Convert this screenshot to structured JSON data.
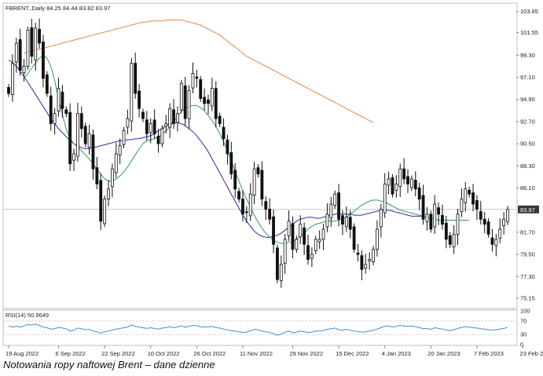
{
  "caption": "Notowania ropy naftowej Brent – dane dzienne",
  "chart_data": [
    {
      "type": "candlestick",
      "header": {
        "symbol": "FBRENT.,Daily",
        "ohlc": "84.25 84.44 83.82 83.97"
      },
      "ylim": [
        74.2,
        104.4
      ],
      "y_ticks": [
        "103.65",
        "101.55",
        "99.30",
        "97.10",
        "94.90",
        "92.70",
        "90.50",
        "88.30",
        "86.10",
        "83.97",
        "81.70",
        "79.50",
        "77.30",
        "75.15"
      ],
      "last_price": 83.97,
      "x_tick_labels": [
        "19 Aug 2022",
        "6 Sep 2022",
        "22 Sep 2022",
        "10 Oct 2022",
        "26 Oct 2022",
        "11 Nov 2022",
        "29 Nov 2022",
        "15 Dec 2022",
        "4 Jan 2023",
        "20 Jan 2023",
        "7 Feb 2023",
        "23 Feb 2023"
      ],
      "x_tick_index": [
        0,
        13,
        25,
        37,
        49,
        61,
        74,
        86,
        98,
        110,
        122,
        134
      ],
      "closes": [
        95.5,
        98.5,
        100.5,
        97.8,
        98.2,
        101.8,
        99.2,
        102.0,
        100.5,
        97.0,
        95.5,
        92.5,
        93.5,
        96.0,
        94.0,
        93.5,
        88.5,
        89.5,
        93.5,
        92.0,
        90.5,
        91.5,
        88.0,
        86.5,
        82.8,
        85.0,
        86.0,
        88.0,
        89.5,
        90.3,
        91.8,
        93.0,
        98.5,
        95.5,
        94.0,
        93.0,
        91.5,
        92.5,
        91.5,
        90.5,
        92.0,
        92.5,
        94.0,
        92.5,
        93.5,
        96.5,
        93.0,
        95.8,
        97.5,
        97.0,
        95.0,
        94.5,
        94.5,
        96.0,
        93.0,
        92.5,
        91.0,
        89.5,
        87.5,
        86.0,
        85.0,
        83.5,
        83.7,
        85.5,
        88.0,
        87.5,
        85.0,
        84.0,
        83.0,
        80.5,
        77.0,
        78.5,
        81.0,
        82.8,
        80.0,
        81.0,
        82.5,
        80.5,
        79.0,
        79.5,
        81.0,
        81.0,
        82.0,
        83.5,
        84.5,
        85.5,
        83.0,
        82.5,
        83.2,
        82.0,
        80.0,
        79.5,
        78.0,
        78.5,
        79.0,
        80.0,
        82.0,
        84.0,
        86.5,
        87.0,
        85.5,
        86.5,
        88.0,
        87.0,
        86.5,
        87.0,
        86.0,
        85.0,
        83.0,
        83.5,
        82.0,
        84.5,
        83.5,
        82.5,
        81.0,
        80.5,
        81.5,
        83.5,
        85.0,
        86.0,
        85.5,
        84.5,
        84.0,
        83.0,
        82.5,
        81.5,
        80.5,
        81.0,
        82.0,
        83.0,
        83.97
      ],
      "sma_fast": [
        97.0,
        97.5,
        98.0,
        98.5,
        99.0,
        99.3,
        99.0,
        98.2,
        96.8,
        95.0,
        93.4,
        92.0,
        91.0,
        90.5,
        90.2,
        89.8,
        89.4,
        89.0,
        88.5,
        88.0,
        87.5,
        87.0,
        86.8,
        86.8,
        87.0,
        87.3,
        87.7,
        88.2,
        88.8,
        89.4,
        90.0,
        90.5,
        90.8,
        90.9,
        91.0,
        91.2,
        91.4,
        91.8,
        92.2,
        92.7,
        93.2,
        93.7,
        94.0,
        94.2,
        94.3,
        94.3,
        94.1,
        93.8,
        93.3,
        92.8,
        92.2,
        91.5,
        90.7,
        89.8,
        88.8,
        87.8,
        86.8,
        85.8,
        85.0,
        84.2,
        83.4,
        82.7,
        82.1,
        81.6,
        81.2,
        80.9,
        80.7,
        80.6,
        80.6,
        80.7,
        80.8,
        81.0,
        81.3,
        81.6,
        82.0,
        82.3,
        82.5,
        82.6,
        82.7,
        82.8,
        82.8,
        82.8,
        82.9,
        83.0,
        83.2,
        83.5,
        83.8,
        84.1,
        84.4,
        84.6,
        84.8,
        84.9,
        84.9,
        84.8,
        84.7,
        84.5,
        84.3,
        84.1,
        83.9,
        83.8,
        83.7,
        83.6,
        83.5,
        83.4,
        83.3,
        83.2,
        83.1,
        83.0,
        82.9,
        82.9,
        82.9,
        82.9,
        82.9,
        82.9,
        82.9,
        82.9,
        82.9
      ],
      "sma_mid": [
        98.8,
        98.6,
        98.2,
        97.7,
        97.2,
        96.6,
        96.0,
        95.4,
        94.8,
        94.2,
        93.6,
        93.0,
        92.5,
        92.0,
        91.6,
        91.2,
        90.8,
        90.5,
        90.3,
        90.1,
        90.0,
        90.0,
        90.1,
        90.2,
        90.3,
        90.4,
        90.5,
        90.6,
        90.7,
        90.8,
        90.8,
        90.9,
        90.9,
        91.0,
        91.0,
        91.1,
        91.2,
        91.3,
        91.5,
        91.8,
        92.0,
        92.3,
        92.5,
        92.6,
        92.6,
        92.5,
        92.3,
        92.0,
        91.7,
        91.3,
        90.8,
        90.3,
        89.7,
        89.0,
        88.3,
        87.6,
        86.9,
        86.2,
        85.5,
        84.8,
        84.1,
        83.4,
        82.8,
        82.3,
        81.8,
        81.5,
        81.3,
        81.2,
        81.2,
        81.3,
        81.4,
        81.6,
        81.9,
        82.2,
        82.5,
        82.8,
        83.0,
        83.1,
        83.2,
        83.2,
        83.1,
        83.1,
        83.2,
        83.3,
        83.4,
        83.5,
        83.5,
        83.5,
        83.5,
        83.5,
        83.4,
        83.4,
        83.4,
        83.5,
        83.6,
        83.7,
        83.8,
        83.9,
        83.9,
        83.9,
        83.8,
        83.7,
        83.6,
        83.5,
        83.4,
        83.3,
        83.3,
        83.3,
        83.3
      ],
      "sma_slow": [
        99.5,
        99.6,
        99.7,
        99.8,
        99.9,
        100.0,
        100.1,
        100.2,
        100.3,
        100.4,
        100.5,
        100.6,
        100.7,
        100.8,
        100.9,
        101.0,
        101.1,
        101.2,
        101.3,
        101.4,
        101.5,
        101.6,
        101.7,
        101.8,
        101.9,
        102.0,
        102.1,
        102.2,
        102.3,
        102.4,
        102.5,
        102.6,
        102.6,
        102.7,
        102.7,
        102.7,
        102.7,
        102.8,
        102.8,
        102.8,
        102.8,
        102.8,
        102.7,
        102.6,
        102.5,
        102.4,
        102.3,
        102.1,
        101.9,
        101.7,
        101.5,
        101.3,
        101.0,
        100.7,
        100.4,
        100.1,
        99.8,
        99.5,
        99.2,
        99.0,
        98.8,
        98.6,
        98.4,
        98.2,
        98.0,
        97.8,
        97.6,
        97.4,
        97.2,
        97.0,
        96.8,
        96.6,
        96.4,
        96.2,
        96.0,
        95.8,
        95.6,
        95.4,
        95.2,
        95.0,
        94.8,
        94.6,
        94.4,
        94.2,
        94.0,
        93.8,
        93.6,
        93.4,
        93.2,
        93.0,
        92.8,
        92.6
      ],
      "colors": {
        "sma_fast": "#2e9d5c",
        "sma_mid": "#2a2aa5",
        "sma_slow": "#e08a44",
        "rsi": "#3d8fd6"
      }
    },
    {
      "type": "line",
      "header": "RSI(14) 50.9649",
      "ylim": [
        0,
        100
      ],
      "y_ticks": [
        "100",
        "70",
        "30",
        "0"
      ],
      "levels": [
        70,
        30
      ],
      "values": [
        55,
        52,
        54,
        52,
        55,
        60,
        58,
        61,
        57,
        52,
        50,
        46,
        47,
        51,
        49,
        47,
        40,
        42,
        49,
        47,
        44,
        45,
        40,
        38,
        34,
        38,
        40,
        43,
        46,
        48,
        50,
        52,
        58,
        54,
        52,
        50,
        48,
        50,
        48,
        46,
        49,
        50,
        53,
        50,
        52,
        56,
        51,
        55,
        57,
        56,
        53,
        52,
        52,
        54,
        50,
        49,
        46,
        44,
        41,
        40,
        38,
        36,
        37,
        41,
        45,
        44,
        40,
        38,
        36,
        32,
        28,
        31,
        37,
        40,
        35,
        37,
        40,
        38,
        36,
        37,
        40,
        40,
        42,
        45,
        47,
        49,
        44,
        43,
        45,
        43,
        40,
        39,
        37,
        38,
        40,
        42,
        46,
        50,
        54,
        55,
        52,
        54,
        57,
        55,
        54,
        55,
        53,
        51,
        47,
        48,
        45,
        50,
        48,
        46,
        43,
        42,
        44,
        48,
        51,
        53,
        52,
        50,
        49,
        47,
        46,
        44,
        43,
        44,
        46,
        48,
        50.96
      ]
    }
  ]
}
